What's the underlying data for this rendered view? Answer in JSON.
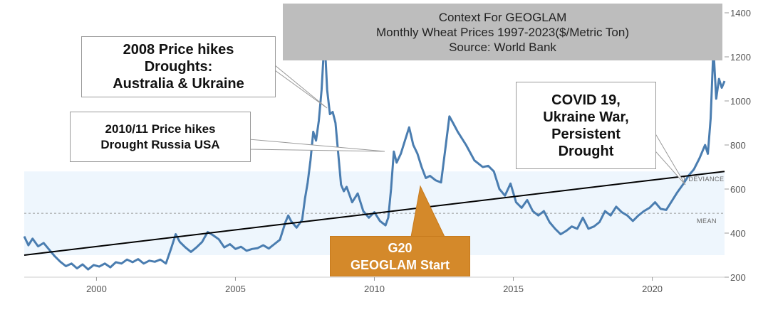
{
  "chart_data": {
    "type": "line",
    "title": "",
    "xlabel": "",
    "ylabel": "",
    "xlim": [
      1997.4,
      2022.6
    ],
    "ylim": [
      200,
      1400
    ],
    "x_ticks": [
      "2000",
      "2005",
      "2010",
      "2015",
      "2020"
    ],
    "y_ticks": [
      "200",
      "400",
      "600",
      "800",
      "1000",
      "1200",
      "1400"
    ],
    "y_axis_side": "right",
    "grid": false,
    "band": {
      "range": [
        300,
        680
      ],
      "color": "#eef6fd",
      "label": ""
    },
    "band_labels": {
      "upper": "1 DEVIANCE",
      "mean": "MEAN"
    },
    "mean_value": 490,
    "trend_line": {
      "start": [
        1997.4,
        300
      ],
      "end": [
        2022.6,
        680
      ],
      "color": "#000000"
    },
    "series": [
      {
        "color": "#4a7db0",
        "points": [
          [
            1997.4,
            385
          ],
          [
            1997.55,
            345
          ],
          [
            1997.7,
            375
          ],
          [
            1997.9,
            340
          ],
          [
            1998.1,
            355
          ],
          [
            1998.3,
            325
          ],
          [
            1998.5,
            295
          ],
          [
            1998.7,
            270
          ],
          [
            1998.9,
            250
          ],
          [
            1999.1,
            262
          ],
          [
            1999.3,
            240
          ],
          [
            1999.5,
            258
          ],
          [
            1999.7,
            235
          ],
          [
            1999.9,
            255
          ],
          [
            2000.1,
            248
          ],
          [
            2000.3,
            262
          ],
          [
            2000.5,
            245
          ],
          [
            2000.7,
            268
          ],
          [
            2000.9,
            262
          ],
          [
            2001.1,
            280
          ],
          [
            2001.3,
            268
          ],
          [
            2001.5,
            282
          ],
          [
            2001.7,
            262
          ],
          [
            2001.9,
            275
          ],
          [
            2002.1,
            270
          ],
          [
            2002.3,
            280
          ],
          [
            2002.5,
            262
          ],
          [
            2002.7,
            335
          ],
          [
            2002.85,
            395
          ],
          [
            2003.0,
            360
          ],
          [
            2003.2,
            335
          ],
          [
            2003.4,
            315
          ],
          [
            2003.6,
            335
          ],
          [
            2003.8,
            360
          ],
          [
            2004.0,
            405
          ],
          [
            2004.2,
            390
          ],
          [
            2004.4,
            372
          ],
          [
            2004.6,
            335
          ],
          [
            2004.8,
            350
          ],
          [
            2005.0,
            328
          ],
          [
            2005.2,
            338
          ],
          [
            2005.4,
            320
          ],
          [
            2005.6,
            328
          ],
          [
            2005.8,
            332
          ],
          [
            2006.0,
            345
          ],
          [
            2006.2,
            330
          ],
          [
            2006.4,
            350
          ],
          [
            2006.6,
            370
          ],
          [
            2006.8,
            450
          ],
          [
            2006.9,
            480
          ],
          [
            2007.0,
            455
          ],
          [
            2007.2,
            425
          ],
          [
            2007.4,
            460
          ],
          [
            2007.5,
            555
          ],
          [
            2007.6,
            630
          ],
          [
            2007.7,
            730
          ],
          [
            2007.8,
            860
          ],
          [
            2007.9,
            820
          ],
          [
            2008.0,
            910
          ],
          [
            2008.1,
            1050
          ],
          [
            2008.15,
            1160
          ],
          [
            2008.2,
            1275
          ],
          [
            2008.25,
            1180
          ],
          [
            2008.3,
            1050
          ],
          [
            2008.4,
            940
          ],
          [
            2008.5,
            950
          ],
          [
            2008.6,
            900
          ],
          [
            2008.7,
            760
          ],
          [
            2008.8,
            620
          ],
          [
            2008.9,
            590
          ],
          [
            2009.0,
            610
          ],
          [
            2009.2,
            540
          ],
          [
            2009.4,
            580
          ],
          [
            2009.6,
            500
          ],
          [
            2009.8,
            470
          ],
          [
            2010.0,
            495
          ],
          [
            2010.2,
            455
          ],
          [
            2010.4,
            435
          ],
          [
            2010.5,
            470
          ],
          [
            2010.6,
            600
          ],
          [
            2010.7,
            770
          ],
          [
            2010.8,
            720
          ],
          [
            2010.95,
            760
          ],
          [
            2011.1,
            820
          ],
          [
            2011.25,
            880
          ],
          [
            2011.4,
            800
          ],
          [
            2011.55,
            760
          ],
          [
            2011.7,
            700
          ],
          [
            2011.85,
            650
          ],
          [
            2012.0,
            660
          ],
          [
            2012.2,
            640
          ],
          [
            2012.4,
            630
          ],
          [
            2012.55,
            780
          ],
          [
            2012.7,
            930
          ],
          [
            2012.85,
            895
          ],
          [
            2013.0,
            860
          ],
          [
            2013.3,
            800
          ],
          [
            2013.6,
            730
          ],
          [
            2013.9,
            700
          ],
          [
            2014.1,
            705
          ],
          [
            2014.3,
            680
          ],
          [
            2014.5,
            600
          ],
          [
            2014.7,
            570
          ],
          [
            2014.9,
            625
          ],
          [
            2015.1,
            540
          ],
          [
            2015.3,
            515
          ],
          [
            2015.5,
            550
          ],
          [
            2015.7,
            500
          ],
          [
            2015.9,
            480
          ],
          [
            2016.1,
            500
          ],
          [
            2016.3,
            450
          ],
          [
            2016.5,
            420
          ],
          [
            2016.7,
            395
          ],
          [
            2016.9,
            410
          ],
          [
            2017.1,
            430
          ],
          [
            2017.3,
            420
          ],
          [
            2017.5,
            470
          ],
          [
            2017.7,
            420
          ],
          [
            2017.9,
            430
          ],
          [
            2018.1,
            450
          ],
          [
            2018.3,
            500
          ],
          [
            2018.5,
            480
          ],
          [
            2018.7,
            520
          ],
          [
            2018.9,
            495
          ],
          [
            2019.1,
            480
          ],
          [
            2019.3,
            455
          ],
          [
            2019.5,
            480
          ],
          [
            2019.7,
            500
          ],
          [
            2019.9,
            515
          ],
          [
            2020.1,
            540
          ],
          [
            2020.3,
            510
          ],
          [
            2020.5,
            505
          ],
          [
            2020.7,
            545
          ],
          [
            2020.9,
            585
          ],
          [
            2021.1,
            620
          ],
          [
            2021.3,
            660
          ],
          [
            2021.5,
            690
          ],
          [
            2021.7,
            740
          ],
          [
            2021.9,
            800
          ],
          [
            2022.0,
            760
          ],
          [
            2022.1,
            920
          ],
          [
            2022.2,
            1240
          ],
          [
            2022.3,
            1010
          ],
          [
            2022.4,
            1100
          ],
          [
            2022.5,
            1060
          ],
          [
            2022.6,
            1090
          ]
        ]
      }
    ]
  },
  "context_box": {
    "line1": "Context For GEOGLAM",
    "line2": "Monthly Wheat Prices 1997-2023($/Metric Ton)",
    "line3": "Source: World Bank"
  },
  "callouts": {
    "c2008": {
      "line1": "2008 Price hikes",
      "line2": "Droughts:",
      "line3": "Australia & Ukraine"
    },
    "c2010": {
      "line1": "2010/11 Price hikes",
      "line2": "Drought Russia USA"
    },
    "covid": {
      "line1": "COVID 19,",
      "line2": "Ukraine War,",
      "line3": "Persistent",
      "line4": "Drought"
    },
    "g20": {
      "line1": "G20",
      "line2": "GEOGLAM Start",
      "color": "#d4892a"
    }
  }
}
